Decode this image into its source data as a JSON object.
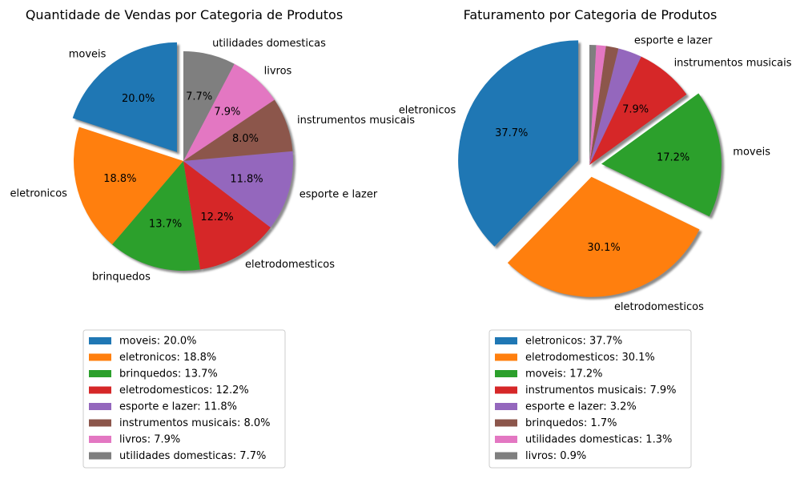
{
  "chart_data": [
    {
      "type": "pie",
      "title": "Quantidade de Vendas por Categoria de Produtos",
      "categories": [
        "moveis",
        "eletronicos",
        "brinquedos",
        "eletrodomesticos",
        "esporte e lazer",
        "instrumentos musicais",
        "livros",
        "utilidades domesticas"
      ],
      "values": [
        20.0,
        18.8,
        13.7,
        12.2,
        11.8,
        8.0,
        7.9,
        7.7
      ],
      "value_labels": [
        "20.0%",
        "18.8%",
        "13.7%",
        "12.2%",
        "11.8%",
        "8.0%",
        "7.9%",
        "7.7%"
      ],
      "colors": [
        "#1f77b4",
        "#ff7f0e",
        "#2ca02c",
        "#d62728",
        "#9467bd",
        "#8c564b",
        "#e377c2",
        "#7f7f7f"
      ],
      "exploded": [
        "moveis"
      ],
      "shadow": true,
      "legend": [
        "moveis: 20.0%",
        "eletronicos: 18.8%",
        "brinquedos: 13.7%",
        "eletrodomesticos: 12.2%",
        "esporte e lazer: 11.8%",
        "instrumentos musicais: 8.0%",
        "livros: 7.9%",
        "utilidades domesticas: 7.7%"
      ],
      "legend_placement": "below"
    },
    {
      "type": "pie",
      "title": "Faturamento por Categoria de Produtos",
      "categories": [
        "eletronicos",
        "eletrodomesticos",
        "moveis",
        "instrumentos musicais",
        "esporte e lazer",
        "brinquedos",
        "utilidades domesticas",
        "livros"
      ],
      "values": [
        37.7,
        30.1,
        17.2,
        7.9,
        3.2,
        1.7,
        1.3,
        0.9
      ],
      "value_labels": [
        "37.7%",
        "30.1%",
        "17.2%",
        "7.9%",
        "",
        "",
        "",
        ""
      ],
      "slice_labels": [
        "eletronicos",
        "eletrodomesticos",
        "moveis",
        "instrumentos musicais",
        "esporte e lazer",
        "",
        "",
        ""
      ],
      "colors": [
        "#1f77b4",
        "#ff7f0e",
        "#2ca02c",
        "#d62728",
        "#9467bd",
        "#8c564b",
        "#e377c2",
        "#7f7f7f"
      ],
      "exploded": [
        "eletronicos",
        "eletrodomesticos",
        "moveis"
      ],
      "shadow": true,
      "legend": [
        "eletronicos: 37.7%",
        "eletrodomesticos: 30.1%",
        "moveis: 17.2%",
        "instrumentos musicais: 7.9%",
        "esporte e lazer: 3.2%",
        "brinquedos: 1.7%",
        "utilidades domesticas: 1.3%",
        "livros: 0.9%"
      ],
      "legend_placement": "below"
    }
  ]
}
